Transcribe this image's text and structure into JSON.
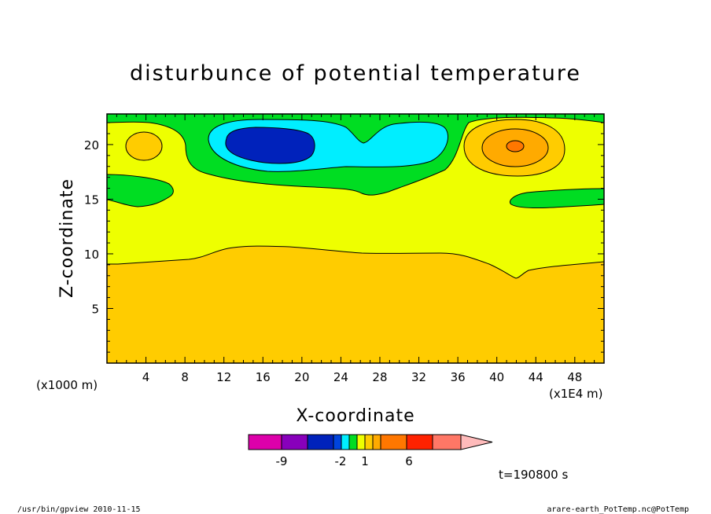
{
  "chart_data": {
    "type": "contour",
    "title": "disturbunce of potential temperature",
    "xlabel": "X-coordinate",
    "ylabel": "Z-coordinate",
    "x_unit_left": "(x1000 m)",
    "x_unit_right": "(x1E4 m)",
    "xlim": [
      0,
      51
    ],
    "ylim": [
      0,
      22.8
    ],
    "x_ticks": [
      4,
      8,
      12,
      16,
      20,
      24,
      28,
      32,
      36,
      40,
      44,
      48
    ],
    "y_ticks": [
      5,
      10,
      15,
      20
    ],
    "colorbar": {
      "levels": [
        "-9",
        "-2",
        "1",
        "6"
      ],
      "colors": [
        "#dd00aa",
        "#8800bb",
        "#0022bb",
        "#0044dd",
        "#00eeff",
        "#00dd22",
        "#eeff00",
        "#ffcc00",
        "#ffaa00",
        "#ff7700",
        "#ff2200",
        "#ff7766",
        "#ffbbbb"
      ]
    },
    "time_label": "t=190800 s",
    "regions": [
      {
        "level": "warm-base",
        "color": "#ffcc00"
      },
      {
        "level": "neutral",
        "color": "#eeff00"
      },
      {
        "level": "green",
        "color": "#00dd22"
      },
      {
        "level": "cyan",
        "color": "#00eeff"
      },
      {
        "level": "blue",
        "color": "#0022bb"
      },
      {
        "level": "orange",
        "color": "#ffaa00"
      },
      {
        "level": "orange-red",
        "color": "#ff7700"
      }
    ]
  },
  "footer": {
    "left": "/usr/bin/gpview  2010-11-15",
    "right": "arare-earth_PotTemp.nc@PotTemp"
  }
}
